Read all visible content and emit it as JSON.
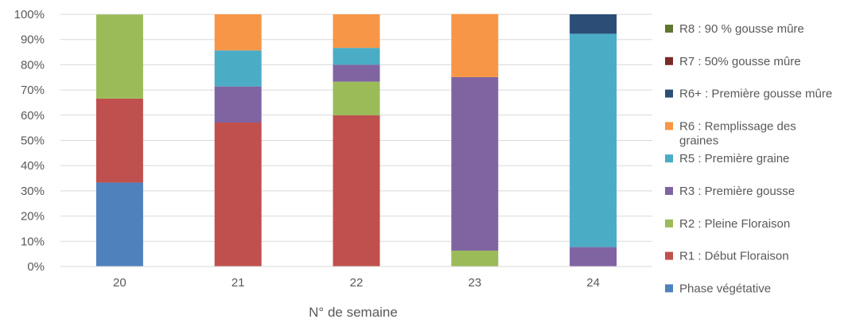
{
  "chart_data": {
    "type": "bar",
    "stacked": true,
    "normalized_percent": true,
    "categories": [
      "20",
      "21",
      "22",
      "23",
      "24"
    ],
    "xlabel": "N° de semaine",
    "ylabel": "",
    "ylim": [
      0,
      100
    ],
    "y_ticks": [
      "0%",
      "10%",
      "20%",
      "30%",
      "40%",
      "50%",
      "60%",
      "70%",
      "80%",
      "90%",
      "100%"
    ],
    "grid": true,
    "legend_position": "right",
    "series": [
      {
        "name": "Phase végétative",
        "color": "#4F81BD",
        "values": [
          33.3,
          0,
          0,
          0,
          0
        ]
      },
      {
        "name": "R1 : Début Floraison",
        "color": "#C0504D",
        "values": [
          33.3,
          57.1,
          60,
          0,
          0
        ]
      },
      {
        "name": "R2 : Pleine Floraison",
        "color": "#9BBB59",
        "values": [
          33.3,
          0,
          13.3,
          6.3,
          0
        ]
      },
      {
        "name": "R3 : Première gousse",
        "color": "#8064A2",
        "values": [
          0,
          14.3,
          6.7,
          68.8,
          7.7
        ]
      },
      {
        "name": "R5 : Première graine",
        "color": "#4BACC6",
        "values": [
          0,
          14.3,
          6.7,
          0,
          84.6
        ]
      },
      {
        "name": "R6 : Remplissage des graines",
        "color": "#F79646",
        "values": [
          0,
          14.3,
          13.3,
          25,
          0
        ]
      },
      {
        "name": "R6+ : Première gousse mûre",
        "color": "#2C4D75",
        "values": [
          0,
          0,
          0,
          0,
          7.7
        ]
      },
      {
        "name": "R7 : 50% gousse mûre",
        "color": "#772C2A",
        "values": [
          0,
          0,
          0,
          0,
          0
        ]
      },
      {
        "name": "R8 : 90 % gousse mûre",
        "color": "#5F7530",
        "values": [
          0,
          0,
          0,
          0,
          0
        ]
      }
    ]
  }
}
